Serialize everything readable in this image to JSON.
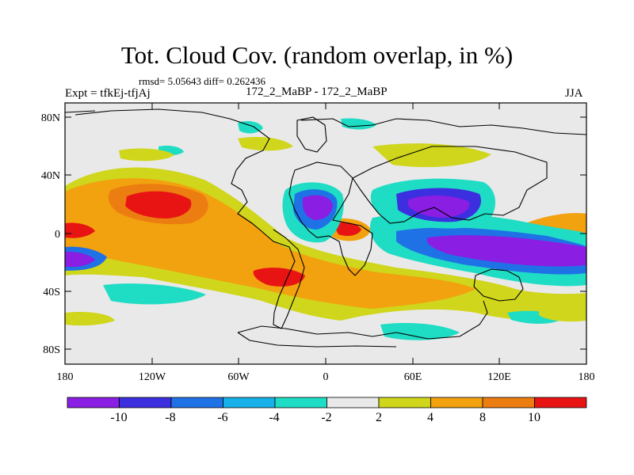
{
  "title": "Tot. Cloud Cov. (random overlap, in %)",
  "stats_line": "rmsd= 5.05643  diff= 0.262436",
  "left_label": "Expt = tfkEj-tfjAj",
  "center_label": "172_2_MaBP - 172_2_MaBP",
  "right_label": "JJA",
  "y_tick_labels": [
    "80N",
    "40N",
    "0",
    "40S",
    "80S"
  ],
  "x_tick_labels": [
    "180",
    "120W",
    "60W",
    "0",
    "60E",
    "120E",
    "180"
  ],
  "colorbar": {
    "tick_labels": [
      "-10",
      "-8",
      "-6",
      "-4",
      "-2",
      "2",
      "4",
      "8",
      "10"
    ],
    "colors": [
      "#8a1ee3",
      "#3c2fe0",
      "#1f72e6",
      "#17b0e8",
      "#1fdcc4",
      "#e9e9e9",
      "#cfd61b",
      "#f2a10f",
      "#ec7d10",
      "#e81414"
    ]
  },
  "colors": {
    "background_field": "#e9e9e9",
    "coastline": "#000000"
  }
}
